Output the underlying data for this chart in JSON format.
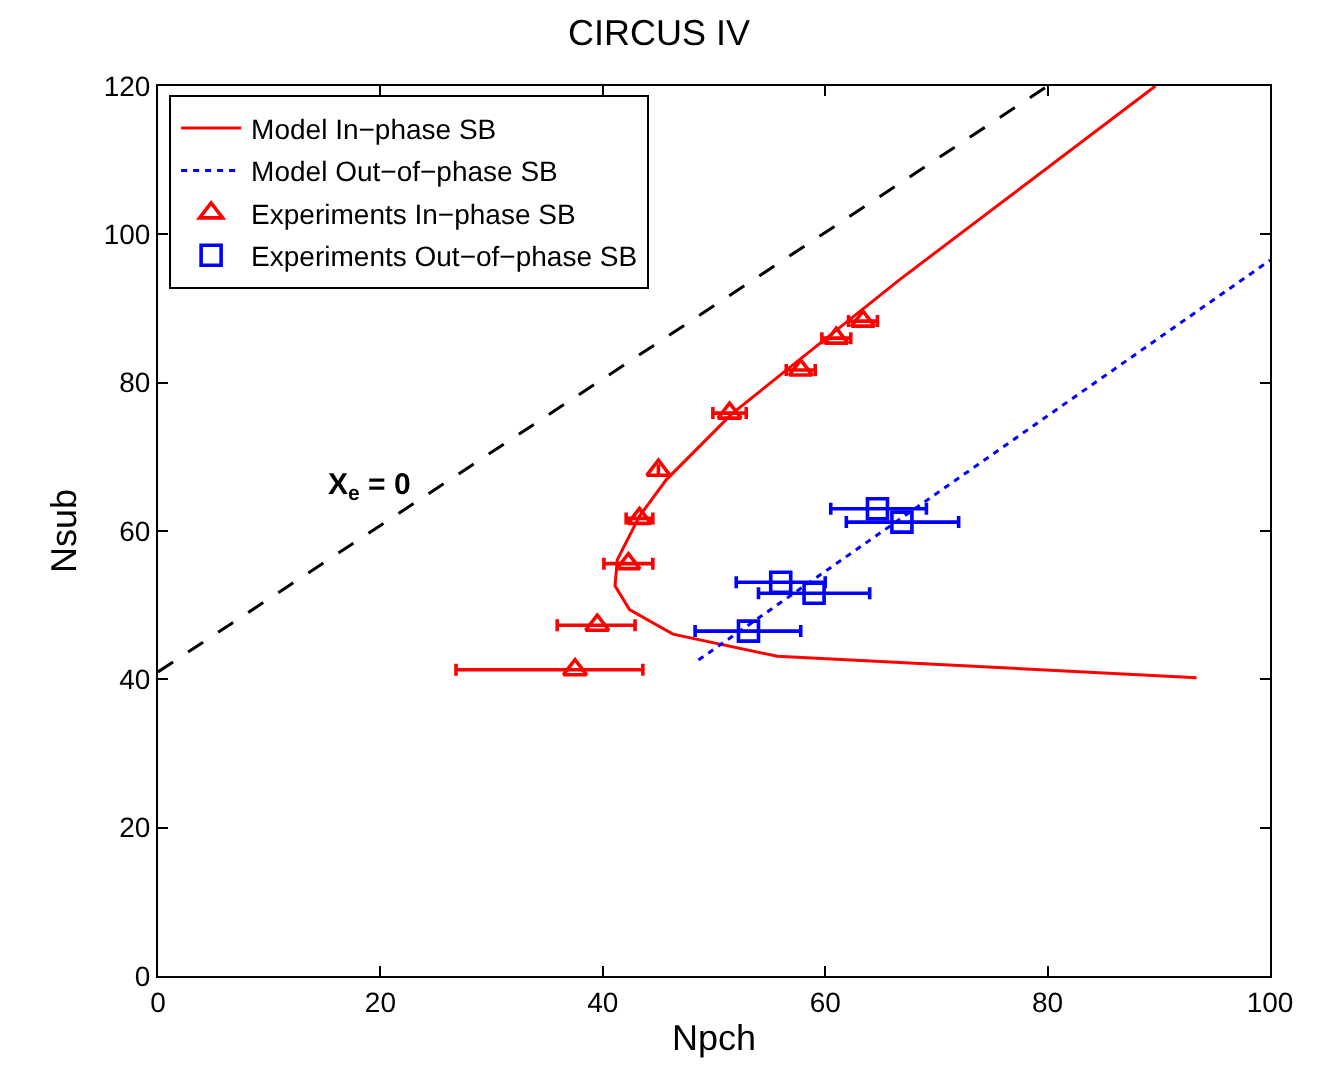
{
  "chart_data": {
    "type": "line",
    "title": "CIRCUS IV",
    "xlabel": "Npch",
    "ylabel": "Nsub",
    "xlim": [
      0,
      100
    ],
    "ylim": [
      0,
      120
    ],
    "xticks": [
      0,
      20,
      40,
      60,
      80,
      100
    ],
    "yticks": [
      0,
      20,
      40,
      60,
      80,
      100,
      120
    ],
    "legend": "top left",
    "annotations": [
      "X$_{e}$ = 0"
    ],
    "series": [
      {
        "name": "Model In−phase SB",
        "color": "#ff0000",
        "line_style": "solid",
        "x": [
          89.7,
          66.7,
          51.6,
          45.7,
          43.3,
          41.3,
          41.1,
          42.4,
          46.3,
          55.7,
          72.9,
          93.4
        ],
        "values": [
          120,
          93.9,
          75.8,
          66.9,
          62,
          56.1,
          52.6,
          49.4,
          46.1,
          43.1,
          41.8,
          40.2
        ]
      },
      {
        "name": "Model Out−of−phase SB",
        "color": "#0000ff",
        "line_style": "dotted",
        "x": [
          48.6,
          100
        ],
        "values": [
          42.6,
          96.5
        ]
      },
      {
        "name": "Experiments In−phase SB",
        "type": "scatter",
        "color": "#ff0000",
        "marker": "triangle",
        "x": [
          37.5,
          39.5,
          42.3,
          43.3,
          45,
          51.4,
          57.8,
          61.0,
          63.4
        ],
        "values": [
          41.3,
          47.3,
          55.6,
          61.7,
          68.2,
          75.9,
          81.7,
          86.0,
          88.3
        ],
        "xerrors": [
          [
            26.8,
            43.6
          ],
          [
            35.9,
            42.9
          ],
          [
            40.1,
            44.5
          ],
          [
            42.1,
            44.5
          ],
          null,
          [
            49.9,
            52.9
          ],
          [
            56.5,
            59.1
          ],
          [
            59.7,
            62.3
          ],
          [
            62.1,
            64.7
          ]
        ]
      },
      {
        "name": "Experiments Out−of−phase SB",
        "type": "scatter",
        "color": "#0000ff",
        "marker": "square",
        "x": [
          53.1,
          56.0,
          59.0,
          64.7,
          66.9
        ],
        "values": [
          46.5,
          53.1,
          51.6,
          63.0,
          61.2
        ],
        "xerrors": [
          [
            48.3,
            57.8
          ],
          [
            52.0,
            60.0
          ],
          [
            54.0,
            64.0
          ],
          [
            60.5,
            69.1
          ],
          [
            61.9,
            72.0
          ]
        ]
      },
      {
        "color": "#000000",
        "line_style": "dashed",
        "x": [
          0,
          80
        ],
        "values": [
          41,
          120
        ]
      }
    ]
  }
}
